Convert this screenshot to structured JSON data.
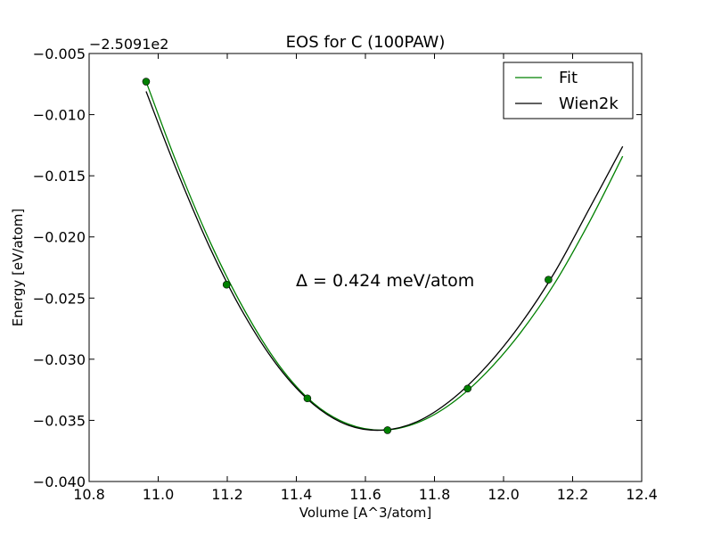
{
  "chart_data": {
    "type": "line",
    "title": "EOS for C (100PAW)",
    "xlabel": "Volume [A^3/atom]",
    "ylabel": "Energy [eV/atom]",
    "offset_text": "−2.5091e2",
    "annotation": "Δ = 0.424 meV/atom",
    "xlim": [
      10.8,
      12.4
    ],
    "ylim": [
      -0.04,
      -0.005
    ],
    "x_ticks": [
      10.8,
      11.0,
      11.2,
      11.4,
      11.6,
      11.8,
      12.0,
      12.2,
      12.4
    ],
    "x_tick_labels": [
      "10.8",
      "11.0",
      "11.2",
      "11.4",
      "11.6",
      "11.8",
      "12.0",
      "12.2",
      "12.4"
    ],
    "y_ticks": [
      -0.04,
      -0.035,
      -0.03,
      -0.025,
      -0.02,
      -0.015,
      -0.01,
      -0.005
    ],
    "y_tick_labels": [
      "−0.040",
      "−0.035",
      "−0.030",
      "−0.025",
      "−0.020",
      "−0.015",
      "−0.010",
      "−0.005"
    ],
    "legend_position": "top-right",
    "series": [
      {
        "name": "Fit",
        "color": "#008000",
        "kind": "line",
        "x": [
          10.965,
          11.05,
          11.15,
          11.25,
          11.35,
          11.45,
          11.55,
          11.65,
          11.75,
          11.85,
          11.95,
          12.05,
          12.15,
          12.25,
          12.345
        ],
        "y": [
          -0.0073,
          -0.0137,
          -0.0204,
          -0.026,
          -0.0305,
          -0.0336,
          -0.0353,
          -0.0358,
          -0.0352,
          -0.0336,
          -0.0311,
          -0.0278,
          -0.0237,
          -0.0187,
          -0.0134
        ]
      },
      {
        "name": "Wien2k",
        "color": "#000000",
        "kind": "line",
        "x": [
          10.965,
          11.05,
          11.15,
          11.25,
          11.35,
          11.45,
          11.55,
          11.65,
          11.75,
          11.85,
          11.95,
          12.05,
          12.15,
          12.25,
          12.345
        ],
        "y": [
          -0.0081,
          -0.0143,
          -0.0209,
          -0.0264,
          -0.0307,
          -0.0337,
          -0.0354,
          -0.0358,
          -0.0351,
          -0.0333,
          -0.0306,
          -0.0271,
          -0.0228,
          -0.0176,
          -0.0126
        ]
      },
      {
        "name": "points",
        "color": "#008000",
        "kind": "markers",
        "x": [
          10.965,
          11.198,
          11.432,
          11.664,
          11.896,
          12.13
        ],
        "y": [
          -0.0073,
          -0.0239,
          -0.0332,
          -0.0358,
          -0.0324,
          -0.0235
        ]
      }
    ]
  }
}
